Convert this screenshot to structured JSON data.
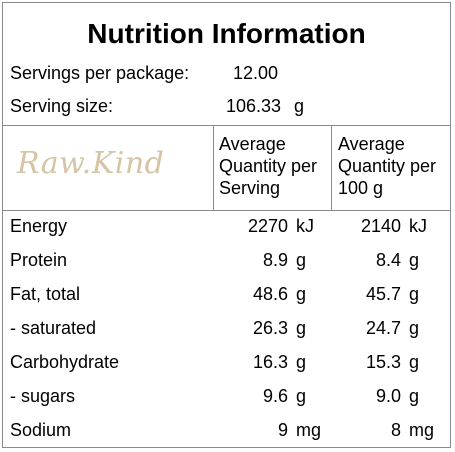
{
  "title": "Nutrition Information",
  "servings_per_package": {
    "label": "Servings per package:",
    "value": "12.00"
  },
  "serving_size": {
    "label": "Serving size:",
    "value": "106.33",
    "unit": "g"
  },
  "logo": {
    "text": "Raw.Kind"
  },
  "columns": {
    "per_serving": [
      "Average",
      "Quantity per",
      "Serving"
    ],
    "per_100g": [
      "Average",
      "Quantity per",
      "100 g"
    ]
  },
  "nutrients": [
    {
      "name": "Energy",
      "per_serving": "2270",
      "per_serving_unit": "kJ",
      "per_100g": "2140",
      "per_100g_unit": "kJ"
    },
    {
      "name": "Protein",
      "per_serving": "8.9",
      "per_serving_unit": "g",
      "per_100g": "8.4",
      "per_100g_unit": "g"
    },
    {
      "name": "Fat, total",
      "per_serving": "48.6",
      "per_serving_unit": "g",
      "per_100g": "45.7",
      "per_100g_unit": "g"
    },
    {
      "name": "- saturated",
      "per_serving": "26.3",
      "per_serving_unit": "g",
      "per_100g": "24.7",
      "per_100g_unit": "g"
    },
    {
      "name": "Carbohydrate",
      "per_serving": "16.3",
      "per_serving_unit": "g",
      "per_100g": "15.3",
      "per_100g_unit": "g"
    },
    {
      "name": "- sugars",
      "per_serving": "9.6",
      "per_serving_unit": "g",
      "per_100g": "9.0",
      "per_100g_unit": "g"
    },
    {
      "name": "Sodium",
      "per_serving": "9",
      "per_serving_unit": "mg",
      "per_100g": "8",
      "per_100g_unit": "mg"
    }
  ]
}
